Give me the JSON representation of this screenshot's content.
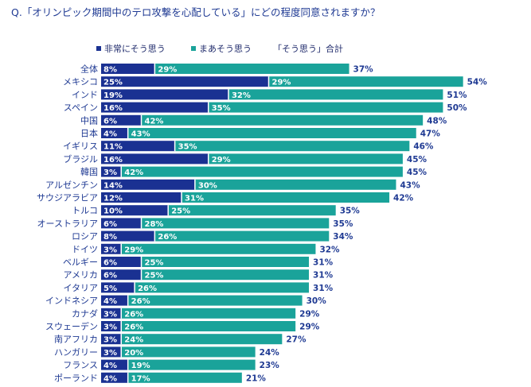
{
  "chart_data": {
    "type": "bar",
    "orientation": "horizontal",
    "stacked": true,
    "title": "Q.「オリンピック期間中のテロ攻撃を心配している」にどの程度同意されますか？",
    "categories": [
      "全体",
      "メキシコ",
      "インド",
      "スペイン",
      "中国",
      "日本",
      "イギリス",
      "ブラジル",
      "韓国",
      "アルゼンチン",
      "サウジアラビア",
      "トルコ",
      "オーストラリア",
      "ロシア",
      "ドイツ",
      "ベルギー",
      "アメリカ",
      "イタリア",
      "インドネシア",
      "カナダ",
      "スウェーデン",
      "南アフリカ",
      "ハンガリー",
      "フランス",
      "ポーランド"
    ],
    "series": [
      {
        "name": "非常にそう思う",
        "color": "#1a3192",
        "values": [
          8,
          25,
          19,
          16,
          6,
          4,
          11,
          16,
          3,
          14,
          12,
          10,
          6,
          8,
          3,
          6,
          6,
          5,
          4,
          3,
          3,
          3,
          3,
          4,
          4
        ]
      },
      {
        "name": "まあそう思う",
        "color": "#1aa39a",
        "values": [
          29,
          29,
          32,
          35,
          42,
          43,
          35,
          29,
          42,
          30,
          31,
          25,
          28,
          26,
          29,
          25,
          25,
          26,
          26,
          26,
          26,
          24,
          20,
          19,
          17
        ]
      }
    ],
    "totals_legend": "「そう思う」合計",
    "totals": [
      37,
      54,
      51,
      50,
      48,
      47,
      46,
      45,
      45,
      43,
      42,
      35,
      35,
      34,
      32,
      31,
      31,
      31,
      30,
      29,
      29,
      27,
      24,
      23,
      21
    ],
    "value_suffix": "%",
    "legend_position": "top",
    "grid": false
  }
}
